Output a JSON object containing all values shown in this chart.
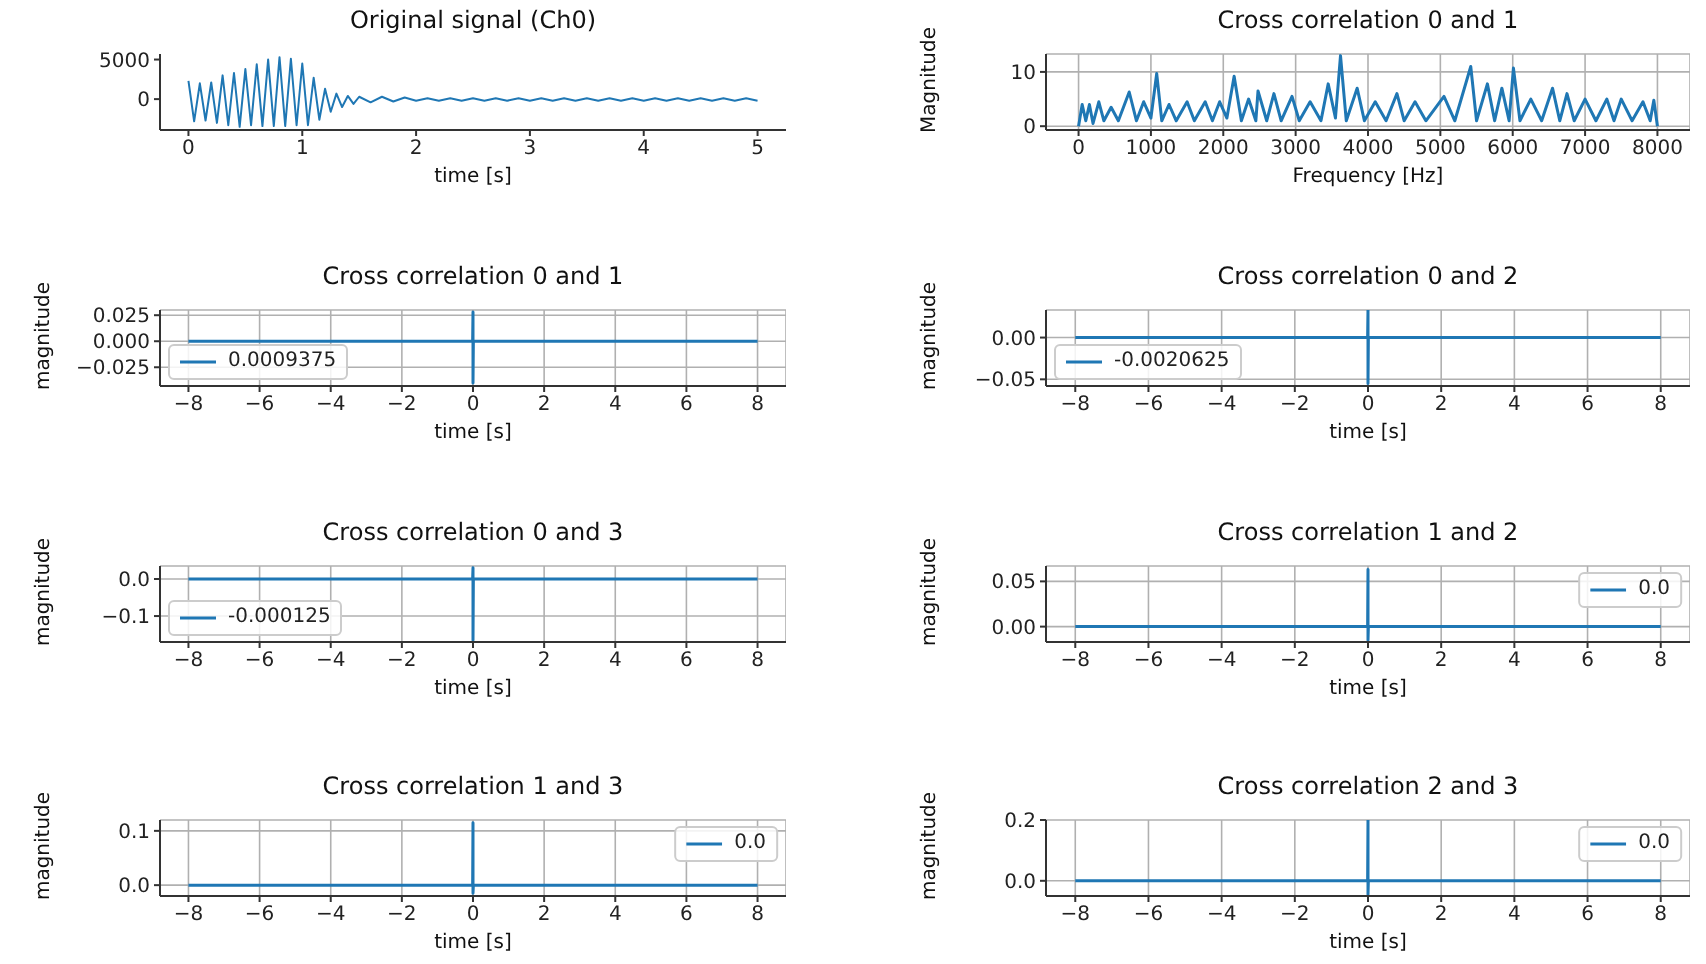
{
  "chart_data": [
    {
      "type": "line",
      "title": "Original signal (Ch0)",
      "xlabel": "time [s]",
      "xlim": [
        -0.25,
        5.25
      ],
      "xticks": [
        0,
        1,
        2,
        3,
        4,
        5
      ],
      "ylim": [
        -3900,
        5700
      ],
      "yticks": [
        0,
        5000
      ],
      "grid": false,
      "legend": false,
      "series": [
        {
          "color": "#1f77b4",
          "x": [
            0,
            0.05,
            0.1,
            0.15,
            0.2,
            0.25,
            0.3,
            0.35,
            0.4,
            0.45,
            0.5,
            0.55,
            0.6,
            0.65,
            0.7,
            0.75,
            0.8,
            0.85,
            0.9,
            0.95,
            1.0,
            1.05,
            1.1,
            1.15,
            1.2,
            1.25,
            1.3,
            1.35,
            1.4,
            1.45,
            1.5,
            1.6,
            1.7,
            1.8,
            1.9,
            2.0,
            2.1,
            2.2,
            2.3,
            2.4,
            2.5,
            2.6,
            2.7,
            2.8,
            2.9,
            3.0,
            3.1,
            3.2,
            3.3,
            3.4,
            3.5,
            3.6,
            3.7,
            3.8,
            3.9,
            4.0,
            4.1,
            4.2,
            4.3,
            4.4,
            4.5,
            4.6,
            4.7,
            4.8,
            4.9,
            5.0
          ],
          "values": [
            2300,
            -2800,
            2000,
            -2700,
            2100,
            -3000,
            3000,
            -3300,
            3300,
            -3500,
            3800,
            -3300,
            4400,
            -3400,
            5000,
            -3400,
            5300,
            -3400,
            5100,
            -3300,
            4500,
            -3300,
            2700,
            -2600,
            1300,
            -1600,
            700,
            -1000,
            400,
            -600,
            300,
            -400,
            300,
            -300,
            200,
            -200,
            100,
            -200,
            100,
            -200,
            100,
            -200,
            100,
            -200,
            100,
            -200,
            100,
            -200,
            100,
            -200,
            100,
            -200,
            100,
            -200,
            100,
            -200,
            100,
            -200,
            100,
            -200,
            100,
            -200,
            100,
            -200,
            100,
            -200
          ]
        }
      ]
    },
    {
      "type": "line",
      "title": "Cross correlation 0 and 1",
      "xlabel": "Frequency [Hz]",
      "ylabel": "Magnitude",
      "xlim": [
        -450,
        8450
      ],
      "xticks": [
        0,
        1000,
        2000,
        3000,
        4000,
        5000,
        6000,
        7000,
        8000
      ],
      "ylim": [
        -0.7,
        13.3
      ],
      "yticks": [
        0,
        10
      ],
      "grid": true,
      "legend": false,
      "series": [
        {
          "color": "#1f77b4",
          "x": [
            0,
            50,
            100,
            150,
            200,
            280,
            350,
            450,
            550,
            700,
            800,
            900,
            1000,
            1080,
            1150,
            1250,
            1350,
            1500,
            1600,
            1750,
            1850,
            1950,
            2050,
            2150,
            2250,
            2350,
            2450,
            2480,
            2600,
            2700,
            2800,
            2950,
            3050,
            3200,
            3350,
            3450,
            3550,
            3620,
            3700,
            3850,
            3950,
            4100,
            4250,
            4400,
            4500,
            4650,
            4800,
            5050,
            5200,
            5420,
            5500,
            5650,
            5750,
            5850,
            5950,
            6010,
            6100,
            6250,
            6400,
            6550,
            6650,
            6750,
            6850,
            7000,
            7150,
            7300,
            7400,
            7500,
            7650,
            7800,
            7900,
            7950,
            8000
          ],
          "values": [
            0,
            4,
            1,
            4,
            0.5,
            4.5,
            1,
            3.5,
            1,
            6.3,
            1,
            4.5,
            1.5,
            9.7,
            1,
            4,
            1,
            4.5,
            1,
            4.5,
            1,
            4.5,
            1.5,
            9.2,
            1,
            5,
            1,
            6.5,
            1,
            6,
            1,
            5.5,
            1,
            4.5,
            1,
            7.8,
            1.5,
            13,
            1,
            7,
            1,
            4.5,
            1,
            6,
            1,
            4.5,
            1,
            5.5,
            1,
            11,
            1,
            7.8,
            1,
            7,
            1,
            10.7,
            1,
            5,
            1,
            7,
            1,
            6,
            1,
            5,
            1,
            5,
            1,
            5,
            1,
            4.5,
            1,
            4.8,
            0
          ]
        }
      ]
    },
    {
      "type": "line",
      "title": "Cross correlation 0 and 1",
      "xlabel": "time [s]",
      "ylabel": "magnitude",
      "xlim": [
        -8.8,
        8.8
      ],
      "xticks": [
        {
          "value": -8,
          "label": "−8"
        },
        {
          "value": -6,
          "label": "−6"
        },
        {
          "value": -4,
          "label": "−4"
        },
        {
          "value": -2,
          "label": "−2"
        },
        0,
        2,
        4,
        6,
        8
      ],
      "ylim": [
        -0.043,
        0.03
      ],
      "yticks": [
        {
          "value": -0.025,
          "label": "−0.025"
        },
        {
          "value": 0,
          "label": "0.000"
        },
        {
          "value": 0.025,
          "label": "0.025"
        }
      ],
      "grid": true,
      "legend": "bottom left",
      "series": [
        {
          "name": "0.0009375",
          "color": "#1f77b4",
          "x": [
            -8,
            -0.01,
            0,
            0,
            0.01,
            8
          ],
          "values": [
            0,
            0,
            0.028,
            -0.04,
            0,
            0
          ]
        }
      ]
    },
    {
      "type": "line",
      "title": "Cross correlation 0 and 2",
      "xlabel": "time [s]",
      "ylabel": "magnitude",
      "xlim": [
        -8.8,
        8.8
      ],
      "xticks": [
        {
          "value": -8,
          "label": "−8"
        },
        {
          "value": -6,
          "label": "−6"
        },
        {
          "value": -4,
          "label": "−4"
        },
        {
          "value": -2,
          "label": "−2"
        },
        0,
        2,
        4,
        6,
        8
      ],
      "ylim": [
        -0.058,
        0.033
      ],
      "yticks": [
        {
          "value": -0.05,
          "label": "−0.05"
        },
        {
          "value": 0,
          "label": "0.00"
        }
      ],
      "grid": true,
      "legend": "bottom left",
      "series": [
        {
          "name": "-0.0020625",
          "color": "#1f77b4",
          "x": [
            -8,
            -0.01,
            0,
            0,
            0.01,
            8
          ],
          "values": [
            0,
            0,
            0.033,
            -0.055,
            0,
            0
          ]
        }
      ]
    },
    {
      "type": "line",
      "title": "Cross correlation 0 and 3",
      "xlabel": "time [s]",
      "ylabel": "magnitude",
      "xlim": [
        -8.8,
        8.8
      ],
      "xticks": [
        {
          "value": -8,
          "label": "−8"
        },
        {
          "value": -6,
          "label": "−6"
        },
        {
          "value": -4,
          "label": "−4"
        },
        {
          "value": -2,
          "label": "−2"
        },
        0,
        2,
        4,
        6,
        8
      ],
      "ylim": [
        -0.17,
        0.035
      ],
      "yticks": [
        {
          "value": -0.1,
          "label": "−0.1"
        },
        {
          "value": 0,
          "label": "0.0"
        }
      ],
      "grid": true,
      "legend": "bottom left",
      "series": [
        {
          "name": "-0.000125",
          "color": "#1f77b4",
          "x": [
            -8,
            -0.01,
            0,
            0,
            0.01,
            8
          ],
          "values": [
            0,
            0,
            0.03,
            -0.165,
            0,
            0
          ]
        }
      ]
    },
    {
      "type": "line",
      "title": "Cross correlation 1 and 2",
      "xlabel": "time [s]",
      "ylabel": "magnitude",
      "xlim": [
        -8.8,
        8.8
      ],
      "xticks": [
        {
          "value": -8,
          "label": "−8"
        },
        {
          "value": -6,
          "label": "−6"
        },
        {
          "value": -4,
          "label": "−4"
        },
        {
          "value": -2,
          "label": "−2"
        },
        0,
        2,
        4,
        6,
        8
      ],
      "ylim": [
        -0.017,
        0.067
      ],
      "yticks": [
        {
          "value": 0,
          "label": "0.00"
        },
        {
          "value": 0.05,
          "label": "0.05"
        }
      ],
      "grid": true,
      "legend": "top right",
      "series": [
        {
          "name": "0.0",
          "color": "#1f77b4",
          "x": [
            -8,
            -0.01,
            0,
            0,
            0.01,
            8
          ],
          "values": [
            0,
            0,
            0.063,
            -0.015,
            0,
            0
          ]
        }
      ]
    },
    {
      "type": "line",
      "title": "Cross correlation 1 and 3",
      "xlabel": "time [s]",
      "ylabel": "magnitude",
      "xlim": [
        -8.8,
        8.8
      ],
      "xticks": [
        {
          "value": -8,
          "label": "−8"
        },
        {
          "value": -6,
          "label": "−6"
        },
        {
          "value": -4,
          "label": "−4"
        },
        {
          "value": -2,
          "label": "−2"
        },
        0,
        2,
        4,
        6,
        8
      ],
      "ylim": [
        -0.02,
        0.12
      ],
      "yticks": [
        {
          "value": 0,
          "label": "0.0"
        },
        {
          "value": 0.1,
          "label": "0.1"
        }
      ],
      "grid": true,
      "legend": "top right",
      "series": [
        {
          "name": "0.0",
          "color": "#1f77b4",
          "x": [
            -8,
            -0.01,
            0,
            0,
            0.01,
            8
          ],
          "values": [
            0,
            0,
            0.115,
            -0.015,
            0,
            0
          ]
        }
      ]
    },
    {
      "type": "line",
      "title": "Cross correlation 2 and 3",
      "xlabel": "time [s]",
      "ylabel": "magnitude",
      "xlim": [
        -8.8,
        8.8
      ],
      "xticks": [
        {
          "value": -8,
          "label": "−8"
        },
        {
          "value": -6,
          "label": "−6"
        },
        {
          "value": -4,
          "label": "−4"
        },
        {
          "value": -2,
          "label": "−2"
        },
        0,
        2,
        4,
        6,
        8
      ],
      "ylim": [
        -0.05,
        0.2
      ],
      "yticks": [
        {
          "value": 0,
          "label": "0.0"
        },
        {
          "value": 0.2,
          "label": "0.2"
        }
      ],
      "grid": true,
      "legend": "top right",
      "series": [
        {
          "name": "0.0",
          "color": "#1f77b4",
          "x": [
            -8,
            -0.01,
            0,
            0,
            0.01,
            8
          ],
          "values": [
            0,
            0,
            0.2,
            -0.045,
            0,
            0
          ]
        }
      ]
    }
  ]
}
